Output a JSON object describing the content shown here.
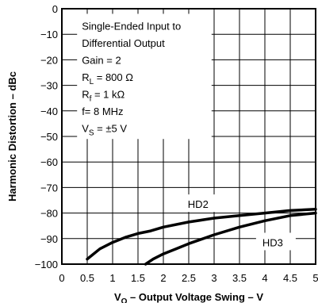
{
  "chart_data": {
    "type": "line",
    "title": "",
    "xlabel_main": "V",
    "xlabel_sub": "O",
    "xlabel_rest": " – Output Voltage Swing – V",
    "ylabel": "Harmonic Distortion – dBc",
    "xlim": [
      0,
      5
    ],
    "ylim": [
      -100,
      0
    ],
    "x_ticks": [
      0,
      0.5,
      1,
      1.5,
      2,
      2.5,
      3,
      3.5,
      4,
      4.5,
      5
    ],
    "x_tick_labels": [
      "0",
      "0.5",
      "1",
      "1.5",
      "2",
      "2.5",
      "3",
      "3.5",
      "4",
      "4.5",
      "5"
    ],
    "y_ticks": [
      0,
      -10,
      -20,
      -30,
      -40,
      -50,
      -60,
      -70,
      -80,
      -90,
      -100
    ],
    "y_tick_labels": [
      "0",
      "−10",
      "−20",
      "−30",
      "−40",
      "−50",
      "−60",
      "−70",
      "−80",
      "−90",
      "−100"
    ],
    "grid": true,
    "annotations": [
      "Single-Ended Input to",
      "Differential Output",
      "Gain = 2",
      {
        "main": "R",
        "sub": "L",
        "rest": " = 800 Ω"
      },
      {
        "main": "R",
        "sub": "f",
        "rest": " = 1 kΩ"
      },
      "f= 8 MHz",
      {
        "main": "V",
        "sub": "S",
        "rest": " = ±5 V"
      }
    ],
    "series": [
      {
        "name": "HD2",
        "x": [
          0.5,
          0.75,
          1.0,
          1.25,
          1.5,
          1.75,
          2.0,
          2.5,
          3.0,
          3.5,
          4.0,
          4.5,
          5.0
        ],
        "y": [
          -98,
          -94,
          -91.5,
          -89.5,
          -88,
          -87,
          -85.5,
          -83.5,
          -82,
          -81,
          -80,
          -79,
          -78.5
        ]
      },
      {
        "name": "HD3",
        "x": [
          1.65,
          1.8,
          2.0,
          2.25,
          2.5,
          3.0,
          3.5,
          4.0,
          4.5,
          5.0
        ],
        "y": [
          -100,
          -98,
          -96,
          -94,
          -92,
          -88.5,
          -85.5,
          -83,
          -81,
          -80
        ]
      }
    ],
    "series_label_positions": [
      {
        "name": "HD2",
        "x": 2.45,
        "y": -78
      },
      {
        "name": "HD3",
        "x": 3.92,
        "y": -93
      }
    ]
  }
}
